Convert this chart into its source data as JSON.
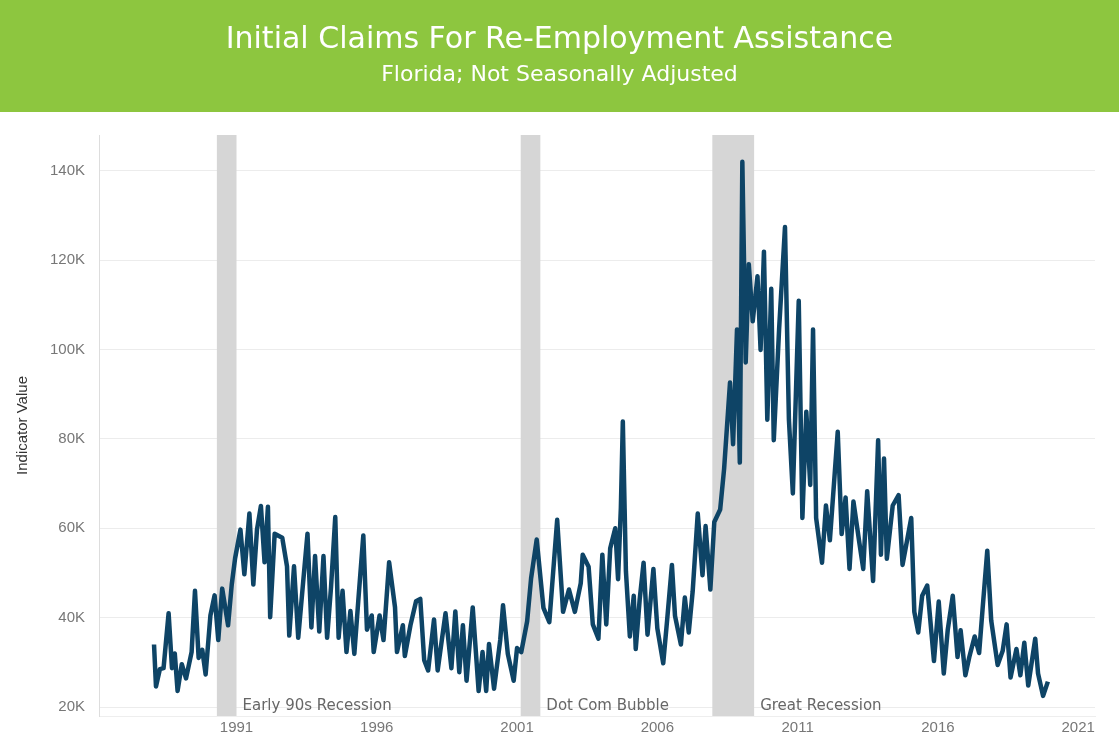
{
  "chart_data": {
    "type": "line",
    "title": "Initial Claims For Re-Employment Assistance",
    "subtitle": "Florida; Not Seasonally Adjusted",
    "ylabel": "Indicator Value",
    "xlim": [
      1986.1,
      2021.6
    ],
    "xticks": [
      1991,
      1996,
      2001,
      2006,
      2011,
      2016,
      2021
    ],
    "ylim": [
      18,
      148
    ],
    "yticks": [
      {
        "value": 20,
        "label": "20K"
      },
      {
        "value": 40,
        "label": "40K"
      },
      {
        "value": 60,
        "label": "60K"
      },
      {
        "value": 80,
        "label": "80K"
      },
      {
        "value": 100,
        "label": "100K"
      },
      {
        "value": 120,
        "label": "120K"
      },
      {
        "value": 140,
        "label": "140K"
      }
    ],
    "grid": "y",
    "legend": false,
    "marker": "none",
    "line_style": "solid",
    "bands": [
      {
        "axis": "x",
        "from": 1990.3,
        "to": 1991.0,
        "label": "Early 90s Recession",
        "color": "#d6d6d6"
      },
      {
        "axis": "x",
        "from": 2001.13,
        "to": 2001.83,
        "label": "Dot Com Bubble",
        "color": "#d6d6d6"
      },
      {
        "axis": "x",
        "from": 2007.96,
        "to": 2009.45,
        "label": "Great Recession",
        "color": "#d6d6d6"
      }
    ],
    "series": [
      {
        "color": "#0e4466",
        "x": [
          1988.06,
          1988.13,
          1988.27,
          1988.4,
          1988.58,
          1988.7,
          1988.8,
          1988.9,
          1989.05,
          1989.2,
          1989.4,
          1989.52,
          1989.65,
          1989.78,
          1989.9,
          1990.07,
          1990.22,
          1990.35,
          1990.49,
          1990.7,
          1990.83,
          1990.95,
          1991.14,
          1991.28,
          1991.46,
          1991.6,
          1991.73,
          1991.87,
          1992.0,
          1992.12,
          1992.2,
          1992.36,
          1992.63,
          1992.8,
          1992.88,
          1993.05,
          1993.2,
          1993.4,
          1993.53,
          1993.67,
          1993.8,
          1993.95,
          1994.1,
          1994.23,
          1994.37,
          1994.52,
          1994.64,
          1994.78,
          1994.92,
          1995.06,
          1995.2,
          1995.34,
          1995.52,
          1995.65,
          1995.82,
          1995.89,
          1996.1,
          1996.24,
          1996.44,
          1996.65,
          1996.72,
          1996.93,
          1997.0,
          1997.2,
          1997.4,
          1997.55,
          1997.69,
          1997.83,
          1998.04,
          1998.17,
          1998.45,
          1998.66,
          1998.8,
          1998.94,
          1999.07,
          1999.2,
          1999.42,
          1999.63,
          1999.77,
          1999.9,
          2000.0,
          2000.18,
          2000.4,
          2000.5,
          2000.67,
          2000.88,
          2001.0,
          2001.15,
          2001.36,
          2001.5,
          2001.7,
          2001.94,
          2002.15,
          2002.43,
          2002.64,
          2002.85,
          2003.06,
          2003.27,
          2003.34,
          2003.55,
          2003.7,
          2003.9,
          2004.04,
          2004.18,
          2004.32,
          2004.5,
          2004.6,
          2004.7,
          2004.77,
          2004.88,
          2005.02,
          2005.16,
          2005.23,
          2005.37,
          2005.51,
          2005.65,
          2005.86,
          2006.0,
          2006.21,
          2006.35,
          2006.52,
          2006.63,
          2006.84,
          2006.98,
          2007.12,
          2007.26,
          2007.44,
          2007.61,
          2007.72,
          2007.89,
          2008.03,
          2008.24,
          2008.38,
          2008.59,
          2008.7,
          2008.84,
          2008.94,
          2009.03,
          2009.15,
          2009.26,
          2009.4,
          2009.57,
          2009.68,
          2009.8,
          2009.92,
          2010.06,
          2010.15,
          2010.34,
          2010.55,
          2010.69,
          2010.83,
          2011.04,
          2011.17,
          2011.31,
          2011.45,
          2011.55,
          2011.66,
          2011.87,
          2012.01,
          2012.15,
          2012.43,
          2012.57,
          2012.71,
          2012.85,
          2012.99,
          2013.2,
          2013.34,
          2013.48,
          2013.69,
          2013.87,
          2013.97,
          2014.08,
          2014.18,
          2014.39,
          2014.6,
          2014.74,
          2015.05,
          2015.16,
          2015.3,
          2015.44,
          2015.62,
          2015.86,
          2016.03,
          2016.21,
          2016.35,
          2016.53,
          2016.7,
          2016.81,
          2016.98,
          2017.12,
          2017.31,
          2017.47,
          2017.59,
          2017.76,
          2017.9,
          2018.13,
          2018.31,
          2018.45,
          2018.59,
          2018.8,
          2018.94,
          2019.08,
          2019.22,
          2019.47,
          2019.57,
          2019.75,
          2019.92
        ],
        "values": [
          34,
          24.6,
          28.5,
          28.7,
          41,
          28.7,
          32,
          23.6,
          29.6,
          26.4,
          32.3,
          46,
          31,
          32.8,
          27.3,
          40.5,
          45,
          35,
          46.5,
          38.3,
          47.4,
          53.3,
          59.7,
          49.7,
          63.3,
          47.4,
          59.7,
          65,
          52.4,
          64.8,
          40.1,
          58.8,
          57.9,
          51.5,
          36,
          51.5,
          35.5,
          49.7,
          58.8,
          37.8,
          53.8,
          36.9,
          53.8,
          35.5,
          46.9,
          62.5,
          35.5,
          46,
          32.3,
          41.5,
          31.9,
          43.7,
          58.4,
          37.3,
          40.5,
          32.3,
          40.5,
          35,
          52.4,
          42.3,
          32.3,
          38.3,
          31.4,
          38.3,
          43.7,
          44.2,
          30.5,
          28.2,
          39.6,
          28.2,
          41,
          28.7,
          41.4,
          27.8,
          38.3,
          25.9,
          42.3,
          23.6,
          32.3,
          23.6,
          34.1,
          24.1,
          35,
          42.8,
          31.9,
          25.9,
          33.2,
          32.3,
          39.2,
          48.8,
          57.5,
          42.2,
          39,
          61.9,
          41.3,
          46.3,
          41.3,
          47.7,
          54.1,
          51.4,
          38.5,
          35.3,
          54.1,
          38.5,
          55.5,
          60,
          48.6,
          64.6,
          83.9,
          50.4,
          35.8,
          44.9,
          33,
          44,
          52.3,
          36.2,
          50.9,
          37.6,
          29.8,
          39.5,
          51.8,
          40.4,
          34,
          44.5,
          36.7,
          45.9,
          63.3,
          49.5,
          60.5,
          46.3,
          61.4,
          64.2,
          73.3,
          92.6,
          78.8,
          104.5,
          74.7,
          142,
          97.1,
          119.1,
          106.3,
          116.4,
          99.9,
          121.9,
          84.3,
          113.6,
          79.7,
          104.5,
          127.4,
          84.3,
          67.8,
          110.9,
          62.3,
          86.1,
          69.7,
          104.5,
          62.3,
          52.3,
          65.1,
          57.3,
          81.6,
          58.7,
          66.9,
          50.9,
          66,
          56.8,
          50.9,
          68.3,
          48.2,
          79.7,
          54.1,
          75.6,
          53.2,
          65.1,
          67.4,
          51.8,
          62.3,
          41.3,
          36.7,
          44.9,
          47.2,
          30.3,
          43.6,
          27.5,
          37.2,
          44.9,
          31.2,
          37.2,
          27.1,
          31.2,
          35.8,
          32.1,
          41.7,
          55,
          39.4,
          29.4,
          32.6,
          38.5,
          26.6,
          33,
          27.1,
          34.4,
          24.8,
          35.3,
          27.5,
          22.5,
          25.7
        ]
      }
    ]
  }
}
